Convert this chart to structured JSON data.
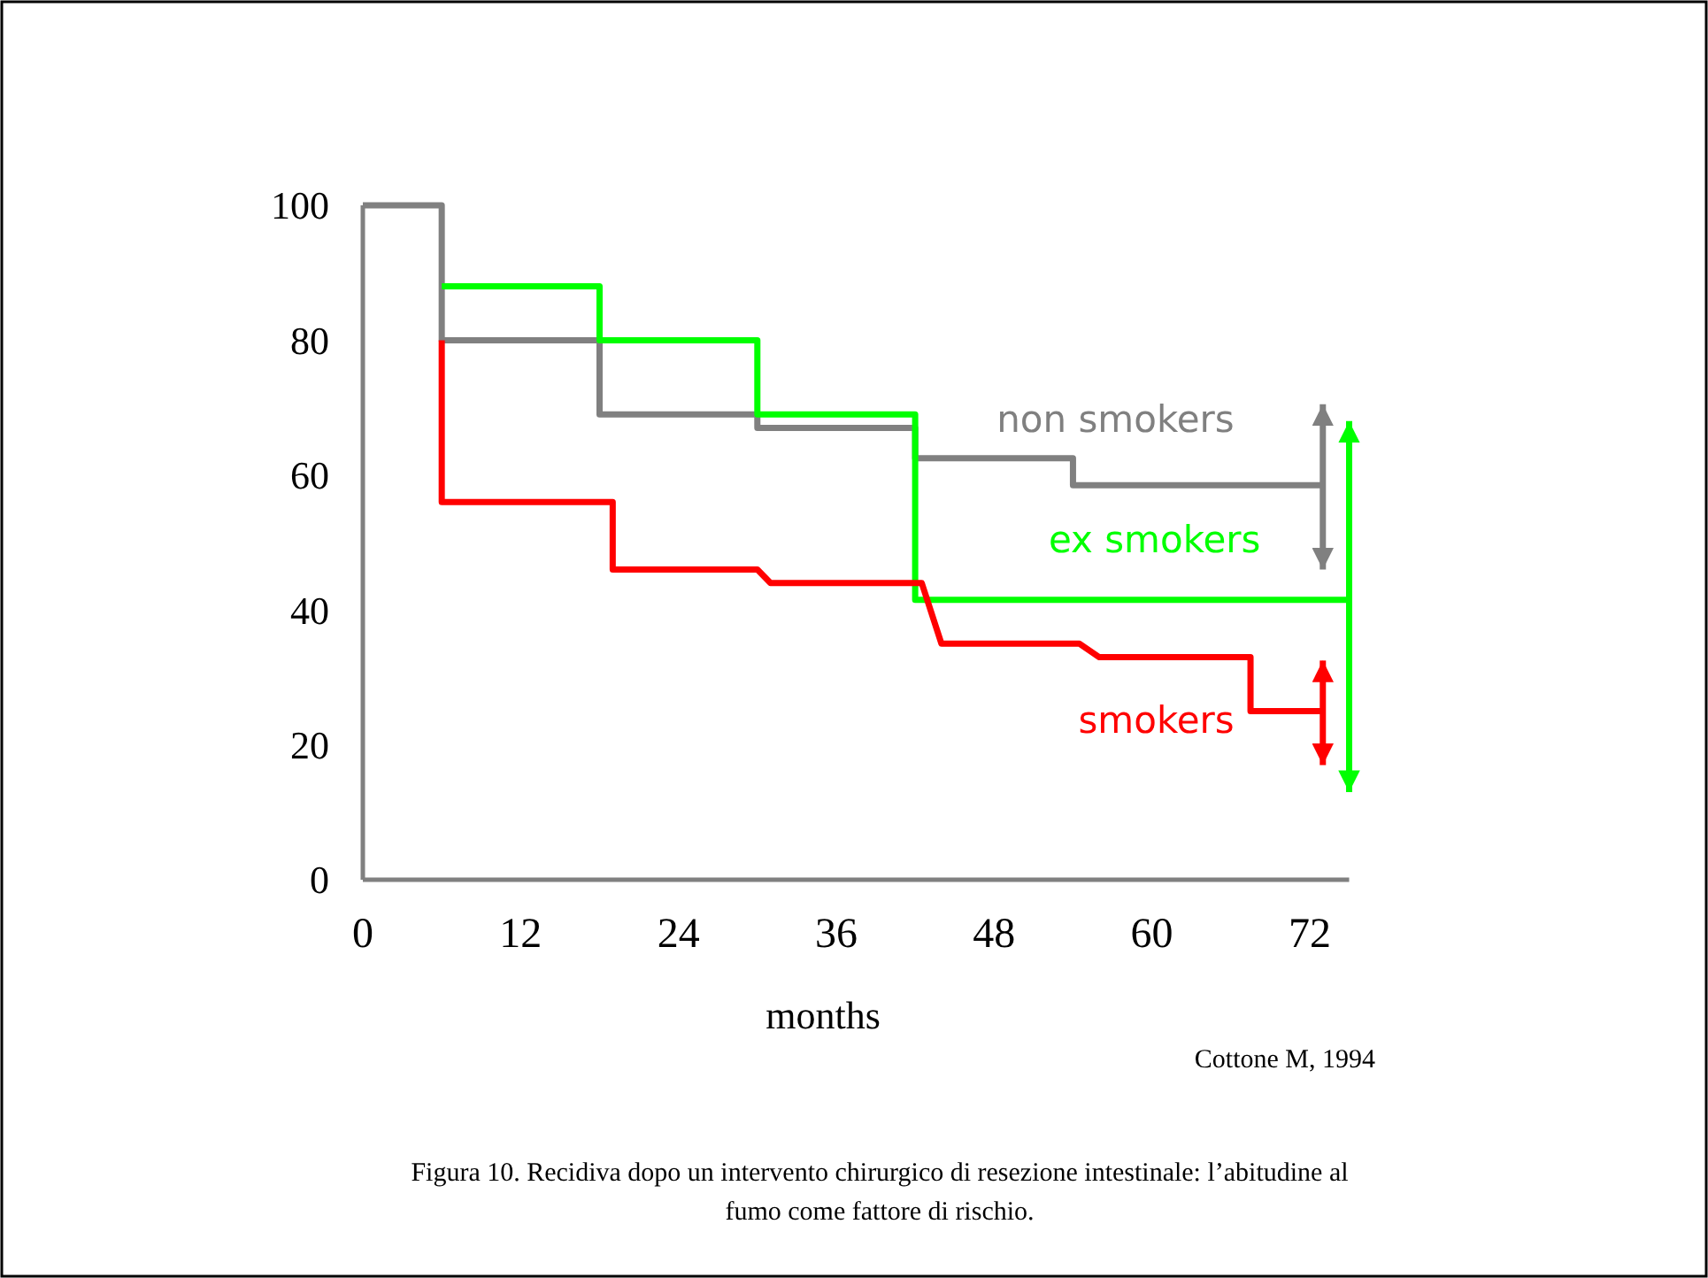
{
  "chart_data": {
    "type": "line",
    "xlabel": "months",
    "xlim": [
      0,
      75
    ],
    "xticks": [
      0,
      12,
      24,
      36,
      48,
      60,
      72
    ],
    "ylim": [
      0,
      100
    ],
    "yticks": [
      0,
      20,
      40,
      60,
      80,
      100
    ],
    "grid": false,
    "marker": "none",
    "line_style": "solid",
    "series": [
      {
        "name": "non smokers",
        "color": "#808080",
        "x": [
          0,
          6,
          6,
          18,
          18,
          30,
          30,
          42,
          42,
          54,
          54,
          73
        ],
        "values": [
          100,
          100,
          80,
          80,
          69,
          69,
          67,
          67,
          62.5,
          62.5,
          58.5,
          58.5
        ],
        "errors": [
          null,
          null,
          null,
          null,
          null,
          null,
          null,
          null,
          null,
          null,
          null,
          [
            46,
            70.5
          ]
        ]
      },
      {
        "name": "ex smokers",
        "color": "#00ff00",
        "x": [
          6,
          18,
          18,
          30,
          30,
          42,
          42,
          75
        ],
        "values": [
          88,
          88,
          80,
          80,
          69,
          69,
          41.5,
          41.5
        ],
        "errors": [
          null,
          null,
          null,
          null,
          null,
          null,
          null,
          [
            13,
            68
          ]
        ]
      },
      {
        "name": "smokers",
        "color": "#ff0000",
        "x": [
          6,
          6,
          19,
          19,
          30,
          31,
          42.5,
          44,
          54.5,
          56,
          67.5,
          67.5,
          73
        ],
        "values": [
          80,
          56,
          56,
          46,
          46,
          44,
          44,
          35,
          35,
          33,
          33,
          25,
          25
        ],
        "errors": [
          null,
          null,
          null,
          null,
          null,
          null,
          null,
          null,
          null,
          null,
          null,
          null,
          [
            17,
            32.5
          ]
        ]
      }
    ],
    "annotations": [
      "Cottone M, 1994",
      "Figura 10. Recidiva dopo un intervento chirurgico di resezione intestinale: l’abitudine al fumo come fattore di rischio."
    ]
  }
}
